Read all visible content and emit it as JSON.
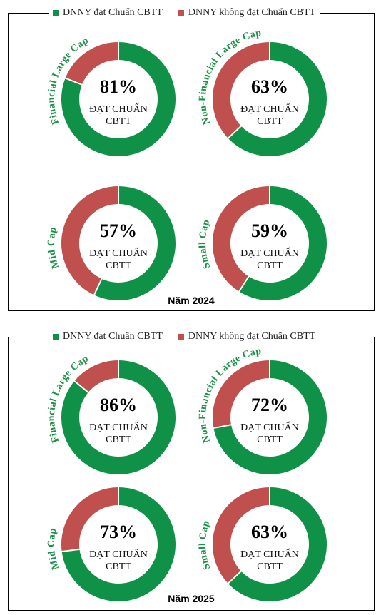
{
  "legend": {
    "pass_label": "DNNY đạt Chuẩn CBTT",
    "fail_label": "DNNY không đạt Chuẩn CBTT",
    "pass_color": "#0f9148",
    "fail_color": "#c0504d"
  },
  "ring_text_line1": "ĐẠT CHUẨN",
  "ring_text_line2": "CBTT",
  "chart_data": [
    {
      "type": "pie",
      "title": "Năm 2024",
      "series": [
        {
          "name": "Financial Large Cap",
          "values": [
            81,
            19
          ],
          "label": "81%"
        },
        {
          "name": "Non-Financial Large Cap",
          "values": [
            63,
            37
          ],
          "label": "63%"
        },
        {
          "name": "Mid Cap",
          "values": [
            57,
            43
          ],
          "label": "57%"
        },
        {
          "name": "Small Cap",
          "values": [
            59,
            41
          ],
          "label": "59%"
        }
      ]
    },
    {
      "type": "pie",
      "title": "Năm 2025",
      "series": [
        {
          "name": "Financial Large Cap",
          "values": [
            86,
            14
          ],
          "label": "86%"
        },
        {
          "name": "Non-Financial Large Cap",
          "values": [
            72,
            28
          ],
          "label": "72%"
        },
        {
          "name": "Mid Cap",
          "values": [
            73,
            27
          ],
          "label": "73%"
        },
        {
          "name": "Small Cap",
          "values": [
            63,
            37
          ],
          "label": "63%"
        }
      ]
    }
  ]
}
